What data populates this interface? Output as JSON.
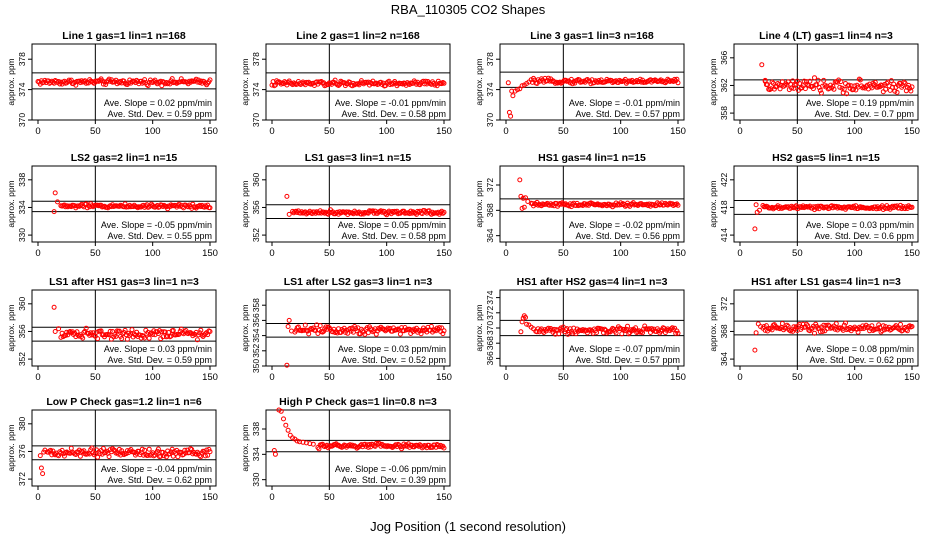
{
  "figure": {
    "title": "RBA_110305  CO2 Shapes",
    "xlabel": "Jog Position (1 second resolution)"
  },
  "colors": {
    "points": "#ff0000",
    "axes": "#000000"
  },
  "chart_data": [
    {
      "type": "scatter",
      "title": "Line 1 gas=1 lin=1 n=168",
      "ylabel": "approx. ppm",
      "xlim": [
        0,
        150
      ],
      "ylim": [
        370,
        380
      ],
      "yticks": [
        370,
        374,
        378
      ],
      "xticks": [
        0,
        50,
        100,
        150
      ],
      "vline": 50,
      "hlines": [
        376.2,
        374.1
      ],
      "base": 375.0,
      "noise": 0.18,
      "x_start": 0,
      "early": [],
      "slope_text": "Ave. Slope = 0.02 ppm/min",
      "std_text": "Ave. Std. Dev. = 0.59 ppm"
    },
    {
      "type": "scatter",
      "title": "Line 2 gas=1 lin=2 n=168",
      "ylabel": "approx. ppm",
      "xlim": [
        0,
        150
      ],
      "ylim": [
        370,
        380
      ],
      "yticks": [
        370,
        374,
        378
      ],
      "xticks": [
        0,
        50,
        100,
        150
      ],
      "vline": 50,
      "hlines": [
        376.2,
        373.8
      ],
      "base": 374.8,
      "noise": 0.18,
      "x_start": 0,
      "early": [],
      "slope_text": "Ave. Slope = -0.01 ppm/min",
      "std_text": "Ave. Std. Dev. = 0.58 ppm"
    },
    {
      "type": "scatter",
      "title": "Line 3 gas=1 lin=3 n=168",
      "ylabel": "approx. ppm",
      "xlim": [
        0,
        150
      ],
      "ylim": [
        370,
        380
      ],
      "yticks": [
        370,
        374,
        378
      ],
      "xticks": [
        0,
        50,
        100,
        150
      ],
      "vline": 50,
      "hlines": [
        376.3,
        374.3
      ],
      "base": 375.1,
      "noise": 0.15,
      "x_start": 22,
      "early": [
        [
          2,
          374.9
        ],
        [
          3,
          371.0
        ],
        [
          4,
          370.5
        ],
        [
          5,
          373.8
        ],
        [
          6,
          373.2
        ],
        [
          8,
          373.8
        ],
        [
          10,
          374.0
        ],
        [
          12,
          374.1
        ],
        [
          14,
          374.5
        ],
        [
          16,
          374.6
        ],
        [
          18,
          374.8
        ],
        [
          20,
          375.0
        ]
      ],
      "slope_text": "Ave. Slope = -0.01 ppm/min",
      "std_text": "Ave. Std. Dev. = 0.57 ppm"
    },
    {
      "type": "scatter",
      "title": "Line 4 (LT) gas=1 lin=4 n=3",
      "ylabel": "approx. ppm",
      "xlim": [
        0,
        150
      ],
      "ylim": [
        357,
        368
      ],
      "yticks": [
        358,
        362,
        366
      ],
      "xticks": [
        0,
        50,
        100,
        150
      ],
      "vline": 50,
      "hlines": [
        362.8,
        360.6
      ],
      "base": 361.9,
      "noise": 0.45,
      "x_start": 22,
      "early": [
        [
          19,
          365.0
        ],
        [
          22,
          362.6
        ]
      ],
      "slope_text": "Ave. Slope = 0.19 ppm/min",
      "std_text": "Ave. Std. Dev. = 0.7 ppm"
    },
    {
      "type": "scatter",
      "title": "LS2 gas=2 lin=1 n=15",
      "ylabel": "approx. ppm",
      "xlim": [
        0,
        150
      ],
      "ylim": [
        329,
        340
      ],
      "yticks": [
        330,
        334,
        338
      ],
      "xticks": [
        0,
        50,
        100,
        150
      ],
      "vline": 50,
      "hlines": [
        334.9,
        333.4
      ],
      "base": 334.2,
      "noise": 0.15,
      "x_start": 20,
      "early": [
        [
          14,
          333.4
        ],
        [
          15,
          336.1
        ],
        [
          17,
          334.8
        ]
      ],
      "slope_text": "Ave. Slope = -0.05 ppm/min",
      "std_text": "Ave. Std. Dev. = 0.55 ppm"
    },
    {
      "type": "scatter",
      "title": "LS1 gas=3 lin=1 n=15",
      "ylabel": "approx. ppm",
      "xlim": [
        0,
        150
      ],
      "ylim": [
        351,
        362
      ],
      "yticks": [
        352,
        356,
        360
      ],
      "xticks": [
        0,
        50,
        100,
        150
      ],
      "vline": 50,
      "hlines": [
        356.4,
        354.4
      ],
      "base": 355.3,
      "noise": 0.15,
      "x_start": 18,
      "early": [
        [
          13,
          357.6
        ],
        [
          15,
          355.0
        ]
      ],
      "slope_text": "Ave. Slope = 0.05 ppm/min",
      "std_text": "Ave. Std. Dev. = 0.58 ppm"
    },
    {
      "type": "scatter",
      "title": "HS1 gas=4 lin=1 n=15",
      "ylabel": "approx. ppm",
      "xlim": [
        0,
        150
      ],
      "ylim": [
        363,
        375
      ],
      "yticks": [
        364,
        368,
        372
      ],
      "xticks": [
        0,
        50,
        100,
        150
      ],
      "vline": 50,
      "hlines": [
        369.8,
        367.8
      ],
      "base": 368.9,
      "noise": 0.15,
      "x_start": 22,
      "early": [
        [
          12,
          372.8
        ],
        [
          13,
          370.2
        ],
        [
          14,
          368.3
        ],
        [
          15,
          369.9
        ],
        [
          16,
          368.5
        ],
        [
          17,
          370.0
        ],
        [
          19,
          369.4
        ]
      ],
      "slope_text": "Ave. Slope = -0.02 ppm/min",
      "std_text": "Ave. Std. Dev. = 0.56 ppm"
    },
    {
      "type": "scatter",
      "title": "HS2 gas=5 lin=1 n=15",
      "ylabel": "approx. ppm",
      "xlim": [
        0,
        150
      ],
      "ylim": [
        413,
        424
      ],
      "yticks": [
        414,
        418,
        422
      ],
      "xticks": [
        0,
        50,
        100,
        150
      ],
      "vline": 50,
      "hlines": [
        419.0,
        417.0
      ],
      "base": 418.0,
      "noise": 0.15,
      "x_start": 20,
      "early": [
        [
          13,
          414.9
        ],
        [
          14,
          418.4
        ],
        [
          15,
          417.3
        ],
        [
          17,
          417.6
        ]
      ],
      "slope_text": "Ave. Slope = 0.03 ppm/min",
      "std_text": "Ave. Std. Dev. = 0.6 ppm"
    },
    {
      "type": "scatter",
      "title": "LS1 after HS1 gas=3 lin=1 n=3",
      "ylabel": "approx. ppm",
      "xlim": [
        0,
        150
      ],
      "ylim": [
        351,
        362
      ],
      "yticks": [
        352,
        356,
        360
      ],
      "xticks": [
        0,
        50,
        100,
        150
      ],
      "vline": 50,
      "hlines": [
        356.6,
        354.6
      ],
      "base": 355.7,
      "noise": 0.35,
      "x_start": 20,
      "early": [
        [
          14,
          359.5
        ],
        [
          15,
          356.0
        ],
        [
          18,
          356.4
        ]
      ],
      "slope_text": "Ave. Slope = 0.03 ppm/min",
      "std_text": "Ave. Std. Dev. = 0.59 ppm"
    },
    {
      "type": "scatter",
      "title": "LS1 after LS2 gas=3 lin=1 n=3",
      "ylabel": "approx. ppm",
      "xlim": [
        0,
        150
      ],
      "ylim": [
        350,
        360
      ],
      "yticks": [
        350,
        352,
        354,
        356,
        358
      ],
      "xticks": [
        0,
        50,
        100,
        150
      ],
      "vline": 50,
      "hlines": [
        355.6,
        353.8
      ],
      "base": 354.8,
      "noise": 0.3,
      "x_start": 20,
      "early": [
        [
          13,
          350.1
        ],
        [
          14,
          355.2
        ],
        [
          15,
          356.0
        ],
        [
          17,
          354.6
        ]
      ],
      "slope_text": "Ave. Slope = 0.03 ppm/min",
      "std_text": "Ave. Std. Dev. = 0.52 ppm"
    },
    {
      "type": "scatter",
      "title": "HS1 after HS2 gas=4 lin=1 n=3",
      "ylabel": "approx. ppm",
      "xlim": [
        0,
        150
      ],
      "ylim": [
        365,
        375
      ],
      "yticks": [
        366,
        368,
        370,
        372,
        374
      ],
      "xticks": [
        0,
        50,
        100,
        150
      ],
      "vline": 50,
      "hlines": [
        371.0,
        369.0
      ],
      "base": 369.7,
      "noise": 0.25,
      "x_start": 26,
      "early": [
        [
          13,
          369.5
        ],
        [
          14,
          370.8
        ],
        [
          15,
          371.3
        ],
        [
          16,
          371.6
        ],
        [
          17,
          371.4
        ],
        [
          18,
          370.5
        ],
        [
          20,
          370.4
        ],
        [
          22,
          370.1
        ],
        [
          24,
          369.9
        ]
      ],
      "slope_text": "Ave. Slope = -0.07 ppm/min",
      "std_text": "Ave. Std. Dev. = 0.57 ppm"
    },
    {
      "type": "scatter",
      "title": "HS1 after LS1 gas=4 lin=1 n=3",
      "ylabel": "approx. ppm",
      "xlim": [
        0,
        150
      ],
      "ylim": [
        363,
        374
      ],
      "yticks": [
        364,
        368,
        372
      ],
      "xticks": [
        0,
        50,
        100,
        150
      ],
      "vline": 50,
      "hlines": [
        369.5,
        367.5
      ],
      "base": 368.5,
      "noise": 0.3,
      "x_start": 20,
      "early": [
        [
          13,
          365.3
        ],
        [
          14,
          367.8
        ],
        [
          16,
          369.1
        ],
        [
          18,
          368.7
        ]
      ],
      "slope_text": "Ave. Slope = 0.08 ppm/min",
      "std_text": "Ave. Std. Dev. = 0.62 ppm"
    },
    {
      "type": "scatter",
      "title": "Low P Check gas=1.2 lin=1 n=6",
      "ylabel": "approx. ppm",
      "xlim": [
        0,
        150
      ],
      "ylim": [
        371,
        382
      ],
      "yticks": [
        372,
        376,
        380
      ],
      "xticks": [
        0,
        50,
        100,
        150
      ],
      "vline": 50,
      "hlines": [
        376.8,
        374.8
      ],
      "base": 375.8,
      "noise": 0.3,
      "x_start": 8,
      "early": [
        [
          2,
          375.4
        ],
        [
          3,
          373.6
        ],
        [
          4,
          372.8
        ],
        [
          5,
          375.9
        ],
        [
          6,
          376.2
        ]
      ],
      "slope_text": "Ave. Slope = -0.04 ppm/min",
      "std_text": "Ave. Std. Dev. = 0.62 ppm"
    },
    {
      "type": "scatter",
      "title": "High P Check gas=1 lin=0.8 n=3",
      "ylabel": "approx. ppm",
      "xlim": [
        0,
        150
      ],
      "ylim": [
        329,
        341
      ],
      "yticks": [
        330,
        334,
        338
      ],
      "xticks": [
        0,
        50,
        100,
        150
      ],
      "vline": 50,
      "hlines": [
        336.2,
        334.4
      ],
      "base": 335.3,
      "noise": 0.2,
      "x_start": 40,
      "early": [
        [
          2,
          334.6
        ],
        [
          3,
          334.0
        ],
        [
          6,
          341.0
        ],
        [
          8,
          340.8
        ],
        [
          10,
          339.6
        ],
        [
          12,
          338.6
        ],
        [
          14,
          337.8
        ],
        [
          16,
          337.0
        ],
        [
          18,
          336.6
        ],
        [
          20,
          336.4
        ],
        [
          22,
          336.1
        ],
        [
          24,
          336.0
        ],
        [
          27,
          335.9
        ],
        [
          30,
          335.8
        ],
        [
          33,
          335.7
        ],
        [
          36,
          335.6
        ]
      ],
      "slope_text": "Ave. Slope = -0.06 ppm/min",
      "std_text": "Ave. Std. Dev. = 0.39 ppm"
    }
  ]
}
